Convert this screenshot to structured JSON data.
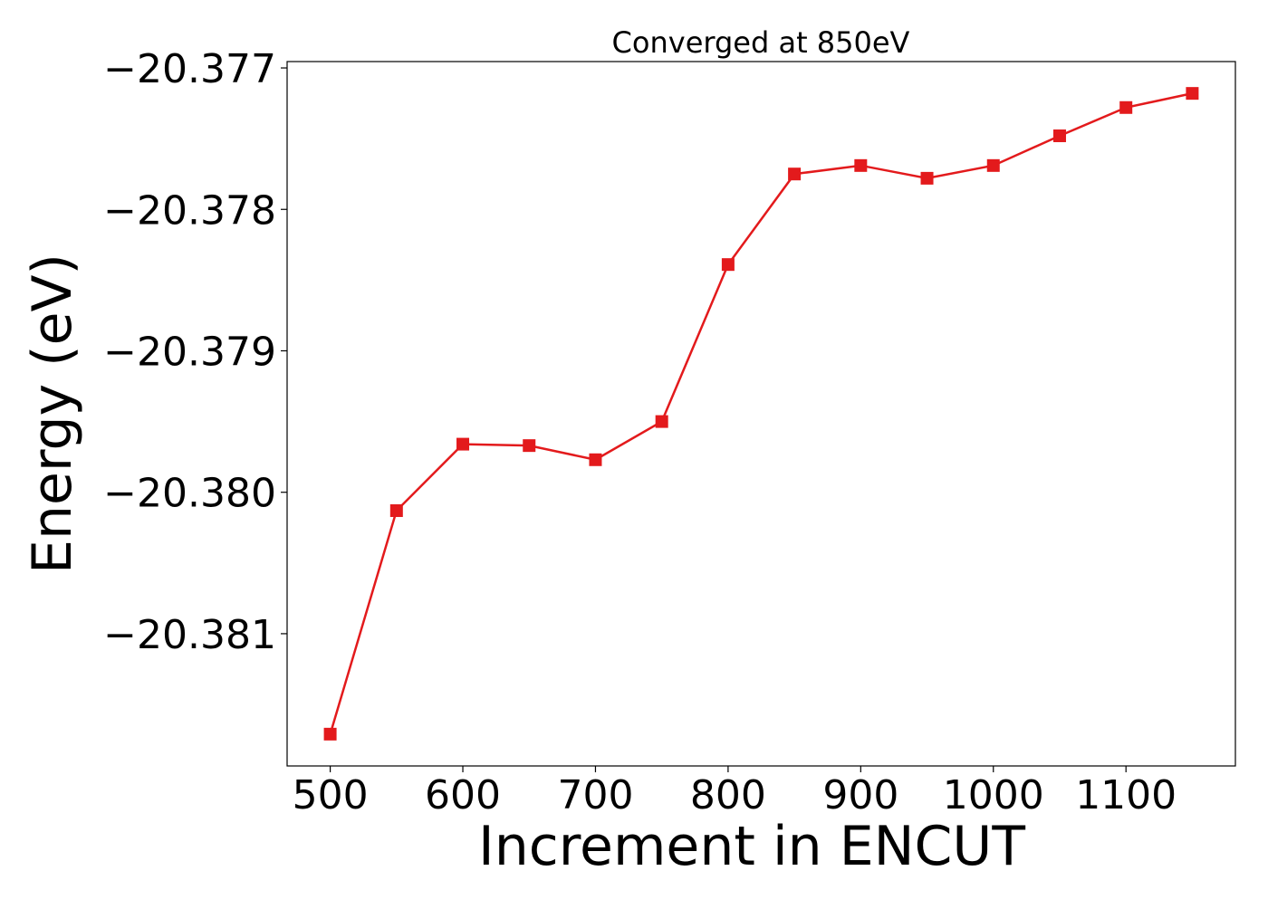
{
  "chart_data": {
    "type": "line",
    "title": "Converged at 850eV",
    "xlabel": "Increment in ENCUT",
    "ylabel": "Energy (eV)",
    "x": [
      500,
      550,
      600,
      650,
      700,
      750,
      800,
      850,
      900,
      950,
      1000,
      1050,
      1100,
      1150
    ],
    "series": [
      {
        "values": [
          -20.38171,
          -20.38013,
          -20.37966,
          -20.37967,
          -20.37977,
          -20.3795,
          -20.37839,
          -20.37775,
          -20.37769,
          -20.37778,
          -20.37769,
          -20.37748,
          -20.37728,
          -20.37718
        ],
        "color": "#e31a1c",
        "marker": "square"
      }
    ],
    "xticks": [
      500,
      600,
      700,
      800,
      900,
      1000,
      1100
    ],
    "xtick_labels": [
      "500",
      "600",
      "700",
      "800",
      "900",
      "1000",
      "1100"
    ],
    "yticks": [
      -20.381,
      -20.38,
      -20.379,
      -20.378,
      -20.377
    ],
    "ytick_labels": [
      "−20.381",
      "−20.380",
      "−20.379",
      "−20.378",
      "−20.377"
    ],
    "xlim": [
      467.5,
      1182.5
    ],
    "ylim": [
      -20.381935,
      -20.376955
    ],
    "grid": false,
    "legend": "none"
  }
}
